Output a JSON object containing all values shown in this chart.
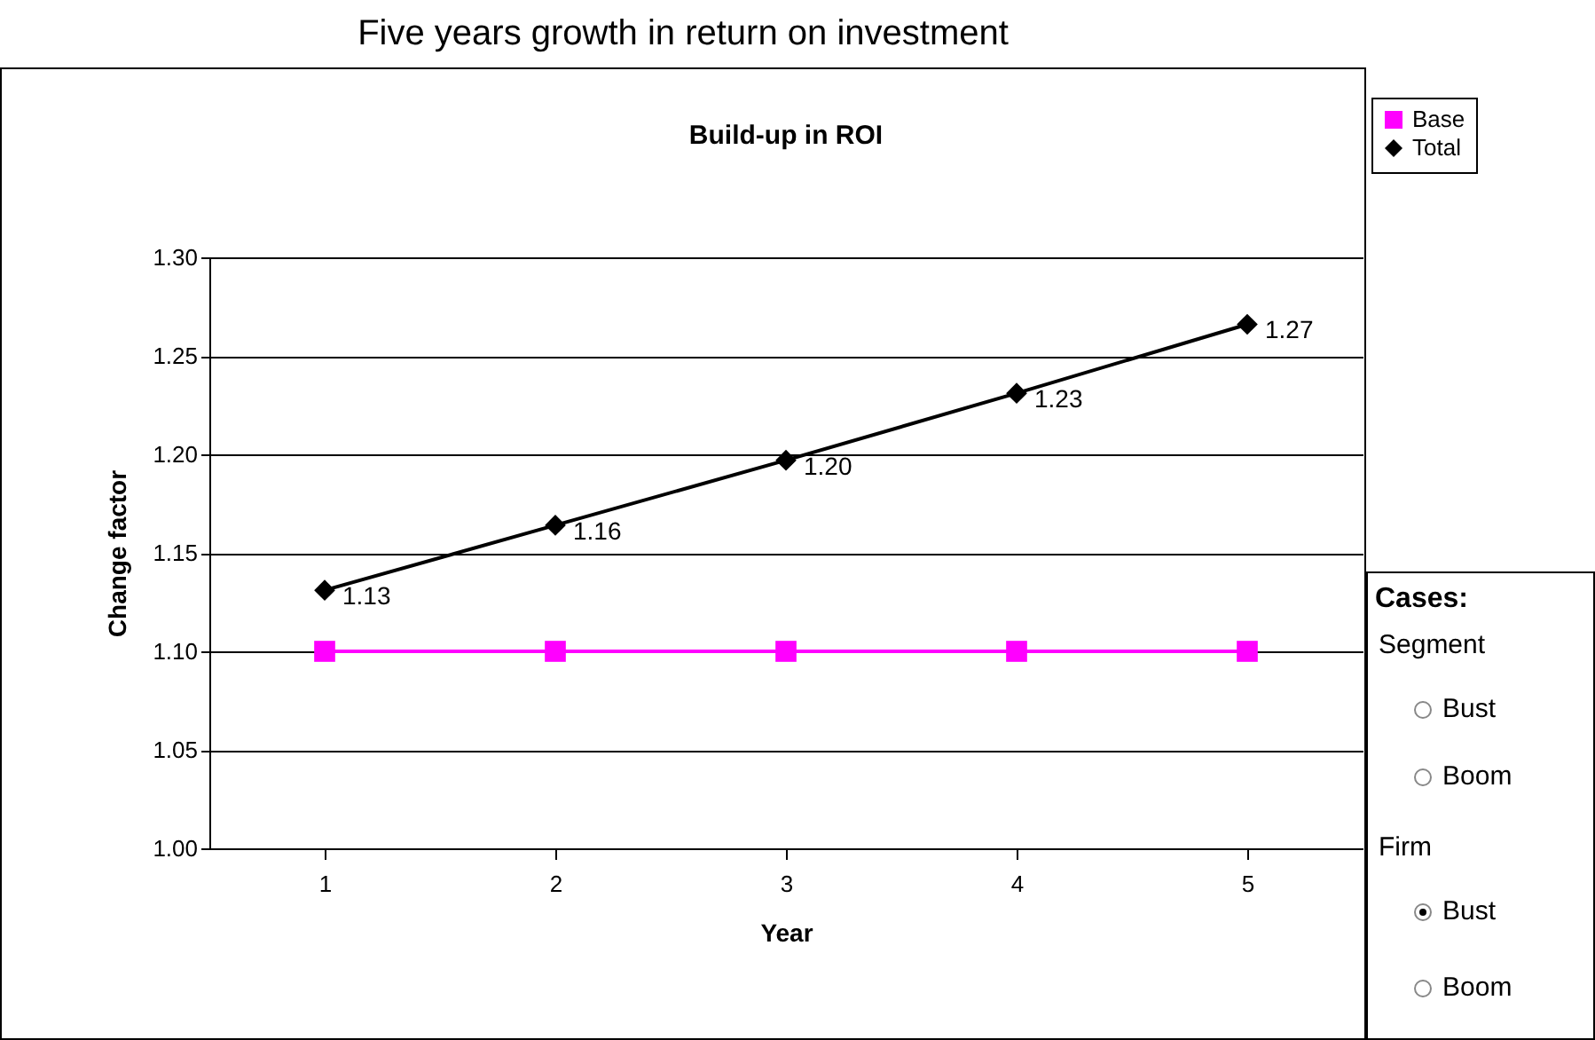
{
  "chart_data": {
    "type": "line",
    "title": "Five years growth in return on investment",
    "subtitle": "Build-up in ROI",
    "xlabel": "Year",
    "ylabel": "Change factor",
    "categories": [
      "1",
      "2",
      "3",
      "4",
      "5"
    ],
    "series": [
      {
        "name": "Base",
        "color": "#ff00ff",
        "marker": "square",
        "values": [
          1.1,
          1.1,
          1.1,
          1.1,
          1.1
        ]
      },
      {
        "name": "Total",
        "color": "#000000",
        "marker": "diamond",
        "values": [
          1.131,
          1.164,
          1.197,
          1.231,
          1.266
        ],
        "value_labels": [
          "1.13",
          "1.16",
          "1.20",
          "1.23",
          "1.27"
        ]
      }
    ],
    "ylim": [
      1.0,
      1.3
    ],
    "yticks": [
      {
        "value": 1.0,
        "label": "1.00"
      },
      {
        "value": 1.05,
        "label": "1.05"
      },
      {
        "value": 1.1,
        "label": "1.10"
      },
      {
        "value": 1.15,
        "label": "1.15"
      },
      {
        "value": 1.2,
        "label": "1.20"
      },
      {
        "value": 1.25,
        "label": "1.25"
      },
      {
        "value": 1.3,
        "label": "1.30"
      }
    ],
    "grid": "y",
    "legend": "top right",
    "annotations": [
      "Cases:",
      "Segment",
      "Bust",
      "Boom",
      "Firm",
      "Bust",
      "Boom"
    ]
  }
}
